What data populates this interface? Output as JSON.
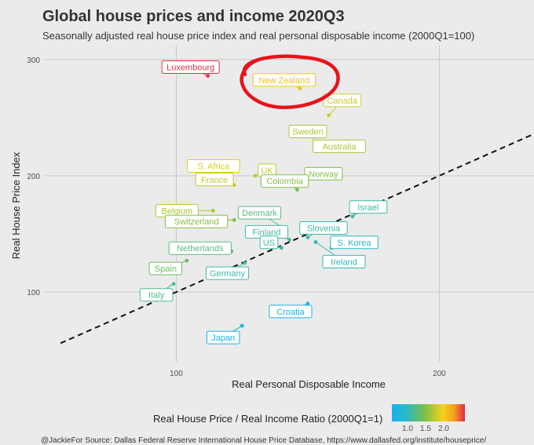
{
  "header": {
    "title": "Global house prices and income 2020Q3",
    "subtitle": "Seasonally adjusted real house price index and real personal disposable income (2000Q1=100)"
  },
  "caption": "@JackieFor Source: Dallas Federal Reserve International House Price Database, https://www.dallasfed.org/institute/houseprice/",
  "colors": {
    "background": "#ebebeb",
    "grid": "#c8c8c8",
    "highlight": "#e8141b"
  },
  "chart_data": {
    "type": "scatter",
    "xlabel": "Real Personal Disposable Income",
    "ylabel": "Real House Price Index",
    "xlim": [
      50,
      236
    ],
    "ylim": [
      40,
      312
    ],
    "xticks": [
      100,
      200
    ],
    "yticks": [
      100,
      200,
      300
    ],
    "reference_line": {
      "style": "dashed",
      "slope": 1,
      "intercept": 0
    },
    "legend": {
      "title": "Real House Price / Real Income Ratio (2000Q1=1)",
      "ticks": [
        "1.0",
        "1.5",
        "2.0"
      ],
      "position": "bottom"
    },
    "annotation": {
      "type": "freehand-circle",
      "target": "New Zealand"
    },
    "points": [
      {
        "name": "Luxembourg",
        "x": 112,
        "y": 286,
        "ratio": 2.55
      },
      {
        "name": "New Zealand",
        "x": 147,
        "y": 275,
        "ratio": 1.87
      },
      {
        "name": "Canada",
        "x": 158,
        "y": 252,
        "ratio": 1.6
      },
      {
        "name": "Sweden",
        "x": 153,
        "y": 228,
        "ratio": 1.49
      },
      {
        "name": "Australia",
        "x": 153,
        "y": 222,
        "ratio": 1.45
      },
      {
        "name": "S. Africa",
        "x": 121,
        "y": 201,
        "ratio": 1.66
      },
      {
        "name": "UK",
        "x": 130,
        "y": 200,
        "ratio": 1.54
      },
      {
        "name": "Norway",
        "x": 150,
        "y": 197,
        "ratio": 1.31
      },
      {
        "name": "France",
        "x": 122,
        "y": 192,
        "ratio": 1.57
      },
      {
        "name": "Colombia",
        "x": 146,
        "y": 188,
        "ratio": 1.29
      },
      {
        "name": "Belgium",
        "x": 114,
        "y": 170,
        "ratio": 1.49
      },
      {
        "name": "Denmark",
        "x": 140,
        "y": 156,
        "ratio": 1.11
      },
      {
        "name": "Israel",
        "x": 167,
        "y": 165,
        "ratio": 0.99
      },
      {
        "name": "Switzerland",
        "x": 122,
        "y": 162,
        "ratio": 1.33
      },
      {
        "name": "Finland",
        "x": 143,
        "y": 145,
        "ratio": 1.01
      },
      {
        "name": "Slovenia",
        "x": 150,
        "y": 147,
        "ratio": 0.98
      },
      {
        "name": "Netherlands",
        "x": 121,
        "y": 135,
        "ratio": 1.12
      },
      {
        "name": "US",
        "x": 140,
        "y": 138,
        "ratio": 0.99
      },
      {
        "name": "S. Korea",
        "x": 159,
        "y": 138,
        "ratio": 0.87
      },
      {
        "name": "Spain",
        "x": 104,
        "y": 127,
        "ratio": 1.22
      },
      {
        "name": "Germany",
        "x": 126,
        "y": 125,
        "ratio": 0.99
      },
      {
        "name": "Ireland",
        "x": 153,
        "y": 143,
        "ratio": 0.93
      },
      {
        "name": "Italy",
        "x": 99,
        "y": 107,
        "ratio": 1.08
      },
      {
        "name": "Croatia",
        "x": 150,
        "y": 90,
        "ratio": 0.6
      },
      {
        "name": "Japan",
        "x": 125,
        "y": 71,
        "ratio": 0.57
      }
    ]
  }
}
